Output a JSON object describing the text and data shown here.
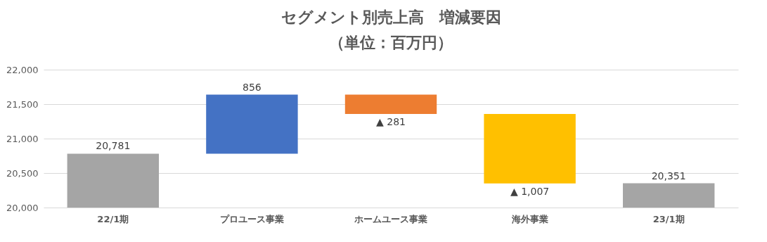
{
  "chart_data": {
    "type": "bar",
    "title": "セグメント別売上高　増減要因",
    "subtitle": "（単位：百万円）",
    "categories": [
      "22/1期",
      "プロユース事業",
      "ホームユース事業",
      "海外事業",
      "23/1期"
    ],
    "values": [
      20781,
      856,
      -281,
      -1007,
      20351
    ],
    "base": [
      0,
      20781,
      21637,
      21356,
      0
    ],
    "colors": [
      "#a5a5a5",
      "#4472c4",
      "#ed7d31",
      "#ffc000",
      "#a5a5a5"
    ],
    "value_labels": [
      "20,781",
      "856",
      "▲ 281",
      "▲ 1,007",
      "20,351"
    ],
    "ylim": [
      20000,
      22000
    ],
    "yticks": [
      {
        "value": 20000,
        "label": "20,000"
      },
      {
        "value": 20500,
        "label": "20,500"
      },
      {
        "value": 21000,
        "label": "21,000"
      },
      {
        "value": 21500,
        "label": "21,500"
      },
      {
        "value": 22000,
        "label": "22,000"
      }
    ],
    "grid": "y"
  }
}
